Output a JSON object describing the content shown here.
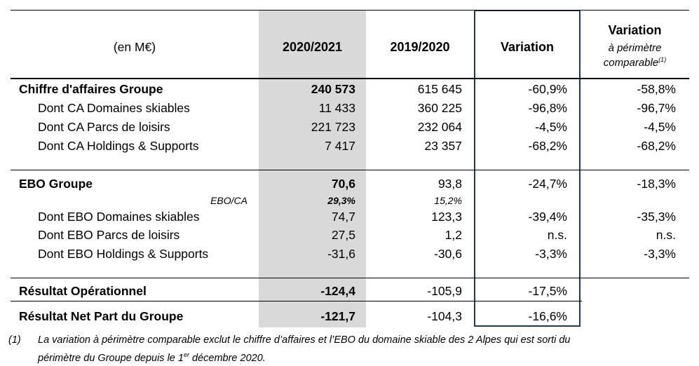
{
  "header": {
    "unit": "(en M€)",
    "col_2021": "2020/2021",
    "col_2020": "2019/2020",
    "col_variation": "Variation",
    "col_var_comp_title": "Variation",
    "col_var_comp_line1": "à périmètre",
    "col_var_comp_line2": "comparable",
    "col_var_comp_sup": "(1)"
  },
  "rows": [
    {
      "label": "Chiffre d'affaires Groupe",
      "v2021": "240 573",
      "v2020": "615 645",
      "var": "-60,9%",
      "varc": "-58,8%"
    },
    {
      "label": "Dont CA Domaines skiables",
      "v2021": "11 433",
      "v2020": "360 225",
      "var": "-96,8%",
      "varc": "-96,7%"
    },
    {
      "label": "Dont CA Parcs de loisirs",
      "v2021": "221 723",
      "v2020": "232 064",
      "var": "-4,5%",
      "varc": "-4,5%"
    },
    {
      "label": "Dont CA Holdings & Supports",
      "v2021": "7 417",
      "v2020": "23 357",
      "var": "-68,2%",
      "varc": "-68,2%"
    },
    {
      "label": "EBO Groupe",
      "v2021": "70,6",
      "v2020": "93,8",
      "var": "-24,7%",
      "varc": "-18,3%"
    },
    {
      "label": "EBO/CA",
      "v2021": "29,3%",
      "v2020": "15,2%",
      "var": "",
      "varc": ""
    },
    {
      "label": "Dont EBO Domaines skiables",
      "v2021": "74,7",
      "v2020": "123,3",
      "var": "-39,4%",
      "varc": "-35,3%"
    },
    {
      "label": "Dont EBO Parcs de loisirs",
      "v2021": "27,5",
      "v2020": "1,2",
      "var": "n.s.",
      "varc": "n.s."
    },
    {
      "label": "Dont EBO Holdings & Supports",
      "v2021": "-31,6",
      "v2020": "-30,6",
      "var": "-3,3%",
      "varc": "-3,3%"
    },
    {
      "label": "Résultat Opérationnel",
      "v2021": "-124,4",
      "v2020": "-105,9",
      "var": "-17,5%",
      "varc": ""
    },
    {
      "label": "Résultat Net Part du Groupe",
      "v2021": "-121,7",
      "v2020": "-104,3",
      "var": "-16,6%",
      "varc": ""
    }
  ],
  "footnote": {
    "marker": "(1)",
    "line1": "La variation à périmètre comparable exclut le chiffre d’affaires et l’EBO du domaine skiable des 2 Alpes qui est sorti du",
    "line2_a": "périmètre du Groupe depuis le 1",
    "line2_sup": "er",
    "line2_b": " décembre 2020."
  }
}
